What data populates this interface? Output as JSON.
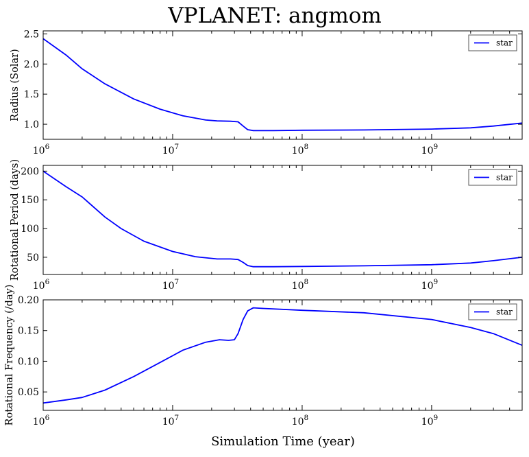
{
  "title": "VPLANET: angmom",
  "xlabel": "Simulation Time (year)",
  "colors": {
    "series": "#0000ff",
    "axes": "#000000",
    "background": "#ffffff"
  },
  "chart_data": [
    {
      "type": "line",
      "xscale": "log",
      "xlim": [
        1000000,
        5000000000
      ],
      "ylim": [
        0.75,
        2.55
      ],
      "ylabel": "Radius (Solar)",
      "yticks": [
        "1.0",
        "1.5",
        "2.0",
        "2.5"
      ],
      "xtick_base": "10",
      "xtick_exps": [
        "6",
        "7",
        "8",
        "9"
      ],
      "legend": {
        "position": "top-right",
        "entries": [
          "star"
        ]
      },
      "series": [
        {
          "name": "star",
          "x": [
            1000000,
            1500000,
            2000000,
            3000000,
            5000000,
            8000000,
            12000000,
            18000000,
            22000000,
            28000000,
            32000000,
            35000000,
            38000000,
            42000000,
            60000000,
            100000000,
            300000000,
            1000000000,
            2000000000,
            3000000000,
            5000000000
          ],
          "y": [
            2.42,
            2.15,
            1.92,
            1.67,
            1.42,
            1.25,
            1.14,
            1.07,
            1.055,
            1.05,
            1.04,
            0.97,
            0.91,
            0.895,
            0.895,
            0.9,
            0.905,
            0.92,
            0.94,
            0.97,
            1.02
          ]
        }
      ]
    },
    {
      "type": "line",
      "xscale": "log",
      "xlim": [
        1000000,
        5000000000
      ],
      "ylim": [
        20,
        210
      ],
      "ylabel": "Rotational Period (days)",
      "yticks": [
        "50",
        "100",
        "150",
        "200"
      ],
      "xtick_base": "10",
      "xtick_exps": [
        "6",
        "7",
        "8",
        "9"
      ],
      "legend": {
        "position": "top-right",
        "entries": [
          "star"
        ]
      },
      "series": [
        {
          "name": "star",
          "x": [
            1000000,
            1500000,
            2000000,
            3000000,
            4000000,
            6000000,
            10000000,
            15000000,
            22000000,
            28000000,
            32000000,
            35000000,
            38000000,
            42000000,
            60000000,
            100000000,
            300000000,
            1000000000,
            2000000000,
            3000000000,
            5000000000
          ],
          "y": [
            200,
            173,
            155,
            120,
            100,
            78,
            60,
            51,
            47,
            47,
            46,
            41,
            35.5,
            33.5,
            33.5,
            34,
            35,
            37,
            40,
            44,
            50
          ]
        }
      ]
    },
    {
      "type": "line",
      "xscale": "log",
      "xlim": [
        1000000,
        5000000000
      ],
      "ylim": [
        0.02,
        0.2
      ],
      "ylabel": "Rotational Frequency (/day)",
      "yticks": [
        "0.05",
        "0.10",
        "0.15",
        "0.20"
      ],
      "xtick_base": "10",
      "xtick_exps": [
        "6",
        "7",
        "8",
        "9"
      ],
      "legend": {
        "position": "top-right",
        "entries": [
          "star"
        ]
      },
      "series": [
        {
          "name": "star",
          "x": [
            1000000,
            1500000,
            2000000,
            3000000,
            5000000,
            8000000,
            12000000,
            18000000,
            23000000,
            27000000,
            30000000,
            32000000,
            35000000,
            38000000,
            42000000,
            50000000,
            100000000,
            300000000,
            1000000000,
            2000000000,
            3000000000,
            5000000000
          ],
          "y": [
            0.032,
            0.037,
            0.041,
            0.053,
            0.075,
            0.098,
            0.118,
            0.131,
            0.135,
            0.134,
            0.135,
            0.145,
            0.168,
            0.182,
            0.187,
            0.186,
            0.183,
            0.179,
            0.168,
            0.155,
            0.145,
            0.126
          ]
        }
      ]
    }
  ]
}
